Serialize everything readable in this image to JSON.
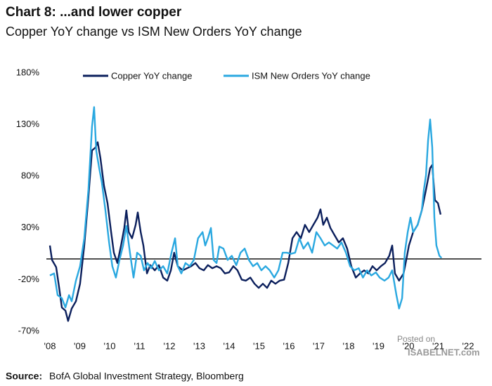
{
  "chart_data": {
    "type": "line",
    "title": "Chart 8: ...and lower copper",
    "subtitle": "Copper YoY change vs ISM New Orders YoY change",
    "source_label": "Source:",
    "source": "BofA Global Investment Strategy, Bloomberg",
    "watermark": [
      "Posted on",
      "ISABELNET.com"
    ],
    "xlim": [
      2008,
      2022.4
    ],
    "ylim": [
      -70,
      180
    ],
    "reference_line": 0,
    "xticks": [
      {
        "value": 2008,
        "label": "'08"
      },
      {
        "value": 2009,
        "label": "'09"
      },
      {
        "value": 2010,
        "label": "'10"
      },
      {
        "value": 2011,
        "label": "'11"
      },
      {
        "value": 2012,
        "label": "'12"
      },
      {
        "value": 2013,
        "label": "'13"
      },
      {
        "value": 2014,
        "label": "'14"
      },
      {
        "value": 2015,
        "label": "'15"
      },
      {
        "value": 2016,
        "label": "'16"
      },
      {
        "value": 2017,
        "label": "'17"
      },
      {
        "value": 2018,
        "label": "'18"
      },
      {
        "value": 2019,
        "label": "'19"
      },
      {
        "value": 2020,
        "label": "'20"
      },
      {
        "value": 2021,
        "label": "'21"
      },
      {
        "value": 2022,
        "label": "'22"
      }
    ],
    "yticks": [
      {
        "value": -70,
        "label": "-70%"
      },
      {
        "value": -20,
        "label": "-20%"
      },
      {
        "value": 30,
        "label": "30%"
      },
      {
        "value": 80,
        "label": "80%"
      },
      {
        "value": 130,
        "label": "130%"
      },
      {
        "value": 180,
        "label": "180%"
      }
    ],
    "series": [
      {
        "name": "Copper YoY change",
        "color": "#0b1f5c",
        "x": [
          2008.0,
          2008.07,
          2008.21,
          2008.31,
          2008.4,
          2008.52,
          2008.61,
          2008.73,
          2008.87,
          2009.01,
          2009.15,
          2009.29,
          2009.41,
          2009.53,
          2009.6,
          2009.69,
          2009.81,
          2009.93,
          2010.05,
          2010.14,
          2010.26,
          2010.38,
          2010.49,
          2010.56,
          2010.64,
          2010.75,
          2010.87,
          2010.94,
          2011.04,
          2011.13,
          2011.25,
          2011.36,
          2011.51,
          2011.65,
          2011.79,
          2011.93,
          2012.05,
          2012.16,
          2012.28,
          2012.45,
          2012.59,
          2012.73,
          2012.87,
          2013.01,
          2013.15,
          2013.29,
          2013.44,
          2013.58,
          2013.72,
          2013.86,
          2014.0,
          2014.14,
          2014.28,
          2014.42,
          2014.56,
          2014.71,
          2014.85,
          2014.99,
          2015.13,
          2015.27,
          2015.41,
          2015.55,
          2015.69,
          2015.84,
          2015.98,
          2016.12,
          2016.26,
          2016.4,
          2016.54,
          2016.68,
          2016.82,
          2016.96,
          2017.06,
          2017.15,
          2017.27,
          2017.39,
          2017.53,
          2017.67,
          2017.81,
          2017.95,
          2018.09,
          2018.24,
          2018.38,
          2018.52,
          2018.66,
          2018.8,
          2018.94,
          2019.08,
          2019.22,
          2019.36,
          2019.46,
          2019.55,
          2019.69,
          2019.84,
          2019.93,
          2020.02,
          2020.16,
          2020.31,
          2020.45,
          2020.59,
          2020.73,
          2020.8,
          2020.89,
          2020.99,
          2021.08
        ],
        "values": [
          13,
          -1,
          -8,
          -28,
          -47,
          -50,
          -60,
          -48,
          -41,
          -24,
          13,
          60,
          105,
          108,
          113,
          98,
          71,
          54,
          26,
          6,
          -4,
          13,
          30,
          47,
          26,
          20,
          33,
          45,
          26,
          13,
          -14,
          -6,
          -11,
          -6,
          -18,
          -21,
          -11,
          6,
          -7,
          -11,
          -9,
          -7,
          -4,
          -9,
          -11,
          -6,
          -9,
          -7,
          -9,
          -14,
          -13,
          -7,
          -11,
          -20,
          -21,
          -18,
          -24,
          -28,
          -24,
          -28,
          -21,
          -24,
          -21,
          -20,
          -4,
          20,
          26,
          20,
          33,
          26,
          33,
          40,
          48,
          33,
          40,
          30,
          23,
          16,
          20,
          10,
          -7,
          -18,
          -14,
          -11,
          -14,
          -7,
          -11,
          -7,
          -4,
          3,
          13,
          -14,
          -21,
          -14,
          -1,
          13,
          26,
          33,
          47,
          67,
          88,
          91,
          57,
          54,
          43
        ]
      },
      {
        "name": "ISM New Orders YoY change",
        "color": "#2aa8e0",
        "x": [
          2008.0,
          2008.14,
          2008.26,
          2008.4,
          2008.52,
          2008.64,
          2008.73,
          2008.87,
          2009.01,
          2009.15,
          2009.29,
          2009.41,
          2009.48,
          2009.55,
          2009.65,
          2009.74,
          2009.86,
          2009.98,
          2010.09,
          2010.21,
          2010.33,
          2010.45,
          2010.56,
          2010.68,
          2010.8,
          2010.92,
          2011.04,
          2011.15,
          2011.27,
          2011.39,
          2011.51,
          2011.65,
          2011.79,
          2011.93,
          2012.07,
          2012.19,
          2012.28,
          2012.4,
          2012.54,
          2012.68,
          2012.82,
          2012.96,
          2013.11,
          2013.2,
          2013.29,
          2013.39,
          2013.48,
          2013.58,
          2013.67,
          2013.81,
          2013.95,
          2014.09,
          2014.24,
          2014.38,
          2014.52,
          2014.66,
          2014.8,
          2014.94,
          2015.08,
          2015.22,
          2015.36,
          2015.51,
          2015.65,
          2015.79,
          2015.93,
          2016.07,
          2016.21,
          2016.35,
          2016.49,
          2016.64,
          2016.78,
          2016.92,
          2017.06,
          2017.2,
          2017.34,
          2017.48,
          2017.62,
          2017.76,
          2017.91,
          2018.05,
          2018.19,
          2018.34,
          2018.48,
          2018.62,
          2018.76,
          2018.91,
          2019.04,
          2019.2,
          2019.34,
          2019.46,
          2019.6,
          2019.69,
          2019.79,
          2019.88,
          2019.98,
          2020.07,
          2020.16,
          2020.31,
          2020.45,
          2020.52,
          2020.59,
          2020.66,
          2020.73,
          2020.8,
          2020.87,
          2020.94,
          2021.04,
          2021.11
        ],
        "values": [
          -16,
          -14,
          -35,
          -38,
          -47,
          -35,
          -41,
          -21,
          -7,
          20,
          67,
          128,
          147,
          105,
          88,
          74,
          47,
          16,
          -7,
          -18,
          -1,
          13,
          32,
          6,
          -18,
          6,
          3,
          -11,
          -4,
          -9,
          -2,
          -11,
          -7,
          -14,
          6,
          20,
          -7,
          -14,
          -4,
          -7,
          -1,
          20,
          26,
          13,
          20,
          30,
          -1,
          -4,
          12,
          10,
          -1,
          3,
          -6,
          6,
          10,
          -1,
          -7,
          -4,
          -11,
          -7,
          -11,
          -18,
          -11,
          6,
          6,
          5,
          6,
          20,
          10,
          16,
          6,
          26,
          20,
          13,
          16,
          13,
          10,
          16,
          6,
          -7,
          -11,
          -9,
          -18,
          -11,
          -16,
          -13,
          -18,
          -21,
          -18,
          -11,
          -35,
          -48,
          -38,
          6,
          26,
          40,
          26,
          33,
          47,
          67,
          81,
          115,
          135,
          108,
          40,
          13,
          3,
          1
        ]
      }
    ]
  }
}
